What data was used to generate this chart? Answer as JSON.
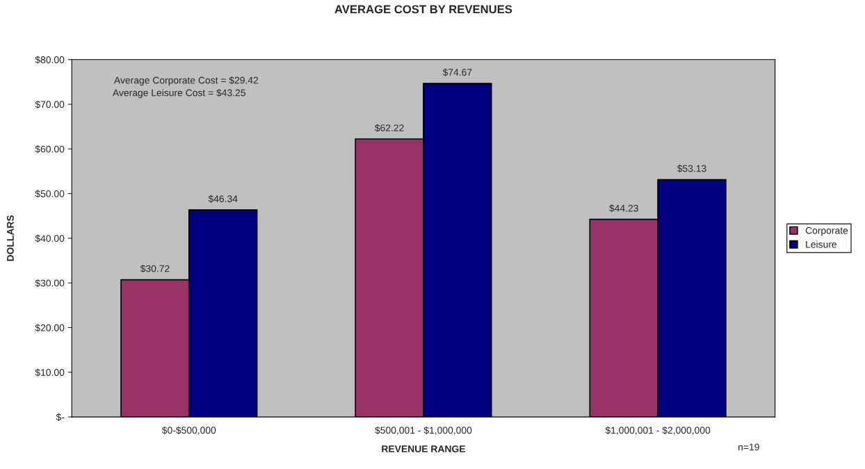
{
  "chart_data": {
    "type": "bar",
    "title": "AVERAGE COST BY REVENUES",
    "xlabel": "REVENUE RANGE",
    "ylabel": "DOLLARS",
    "categories": [
      "$0-$500,000",
      "$500,001 - $1,000,000",
      "$1,000,001 - $2,000,000"
    ],
    "series": [
      {
        "name": "Corporate",
        "color": "#993366",
        "values": [
          30.72,
          62.22,
          44.23
        ],
        "value_labels": [
          "$30.72",
          "$62.22",
          "$44.23"
        ]
      },
      {
        "name": "Leisure",
        "color": "#000080",
        "values": [
          46.34,
          74.67,
          53.13
        ],
        "value_labels": [
          "$46.34",
          "$74.67",
          "$53.13"
        ]
      }
    ],
    "ylim": [
      0,
      80
    ],
    "yticks": [
      {
        "value": 0,
        "label": "$-"
      },
      {
        "value": 10,
        "label": "$10.00"
      },
      {
        "value": 20,
        "label": "$20.00"
      },
      {
        "value": 30,
        "label": "$30.00"
      },
      {
        "value": 40,
        "label": "$40.00"
      },
      {
        "value": 50,
        "label": "$50.00"
      },
      {
        "value": 60,
        "label": "$60.00"
      },
      {
        "value": 70,
        "label": "$70.00"
      },
      {
        "value": 80,
        "label": "$80.00"
      }
    ],
    "grid": false,
    "legend": "right",
    "annotations": [
      "Average Corporate Cost = $29.42",
      "Average Leisure Cost = $43.25",
      "n=19"
    ]
  }
}
